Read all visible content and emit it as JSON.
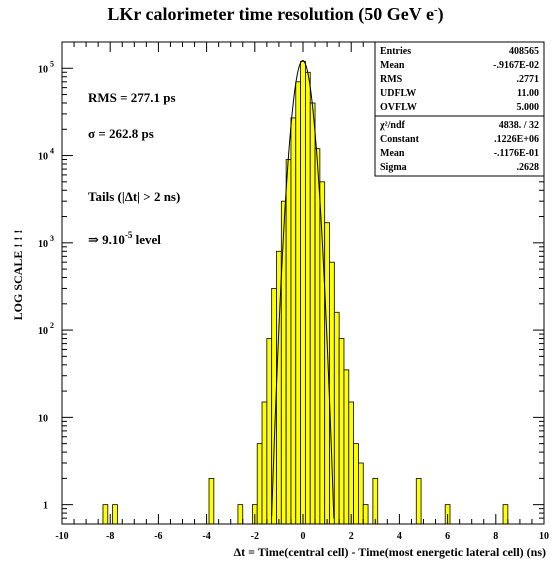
{
  "chart_data": {
    "type": "bar",
    "title_main": "LKr calorimeter time resolution (50 GeV e",
    "title_sup": "-",
    "title_close": ")",
    "xlabel": "Δt = Time(central cell) - Time(most energetic lateral cell)  (ns)",
    "ylabel": "LOG SCALE ! ! !",
    "xlim": [
      -10,
      10
    ],
    "ylim": [
      0.6,
      200000
    ],
    "log_y": true,
    "x_ticks": [
      "-10",
      "-8",
      "-6",
      "-4",
      "-2",
      "0",
      "2",
      "4",
      "6",
      "8",
      "10"
    ],
    "y_ticks": [
      {
        "v": 1,
        "base": "1",
        "exp": ""
      },
      {
        "v": 10,
        "base": "10",
        "exp": ""
      },
      {
        "v": 100,
        "base": "10",
        "exp": "2"
      },
      {
        "v": 1000,
        "base": "10",
        "exp": "3"
      },
      {
        "v": 10000,
        "base": "10",
        "exp": "4"
      },
      {
        "v": 100000,
        "base": "10",
        "exp": "5"
      }
    ],
    "bin_width": 0.2,
    "histogram": [
      {
        "x": -8.2,
        "y": 1
      },
      {
        "x": -7.8,
        "y": 1
      },
      {
        "x": -3.8,
        "y": 2
      },
      {
        "x": -2.6,
        "y": 1
      },
      {
        "x": -2.0,
        "y": 1
      },
      {
        "x": -1.8,
        "y": 5
      },
      {
        "x": -1.6,
        "y": 15
      },
      {
        "x": -1.4,
        "y": 80
      },
      {
        "x": -1.2,
        "y": 300
      },
      {
        "x": -1.0,
        "y": 800
      },
      {
        "x": -0.8,
        "y": 3000
      },
      {
        "x": -0.6,
        "y": 9000
      },
      {
        "x": -0.4,
        "y": 27000
      },
      {
        "x": -0.2,
        "y": 70000
      },
      {
        "x": 0.0,
        "y": 120000
      },
      {
        "x": 0.2,
        "y": 90000
      },
      {
        "x": 0.4,
        "y": 40000
      },
      {
        "x": 0.6,
        "y": 12000
      },
      {
        "x": 0.8,
        "y": 5000
      },
      {
        "x": 1.0,
        "y": 1700
      },
      {
        "x": 1.2,
        "y": 600
      },
      {
        "x": 1.4,
        "y": 160
      },
      {
        "x": 1.6,
        "y": 80
      },
      {
        "x": 1.8,
        "y": 35
      },
      {
        "x": 2.0,
        "y": 15
      },
      {
        "x": 2.2,
        "y": 5
      },
      {
        "x": 2.4,
        "y": 3
      },
      {
        "x": 2.6,
        "y": 1
      },
      {
        "x": 3.0,
        "y": 2
      },
      {
        "x": 4.8,
        "y": 2
      },
      {
        "x": 6.0,
        "y": 1
      },
      {
        "x": 8.4,
        "y": 1
      }
    ],
    "fit": {
      "constant": 122600,
      "mean": -0.01176,
      "sigma": 0.2628
    },
    "fill_color": "#ffff00",
    "line_color": "#000000",
    "annotations": {
      "rms": "RMS = 277.1 ps",
      "sigma": "σ = 262.8 ps",
      "tails": "Tails (|Δt| > 2 ns)",
      "level_pre": "⇒ 9.10",
      "level_exp": "-5",
      "level_post": " level"
    },
    "stats_box": [
      {
        "label": "Entries",
        "value": "408565"
      },
      {
        "label": "Mean",
        "value": "-.9167E-02"
      },
      {
        "label": "RMS",
        "value": ".2771"
      },
      {
        "label": "UDFLW",
        "value": "11.00"
      },
      {
        "label": "OVFLW",
        "value": "5.000"
      }
    ],
    "fit_box": [
      {
        "label": "χ²/ndf",
        "value": "4838.   /  32"
      },
      {
        "label": "Constant",
        "value": ".1226E+06"
      },
      {
        "label": "Mean",
        "value": "-.1176E-01"
      },
      {
        "label": "Sigma",
        "value": ".2628"
      }
    ]
  }
}
